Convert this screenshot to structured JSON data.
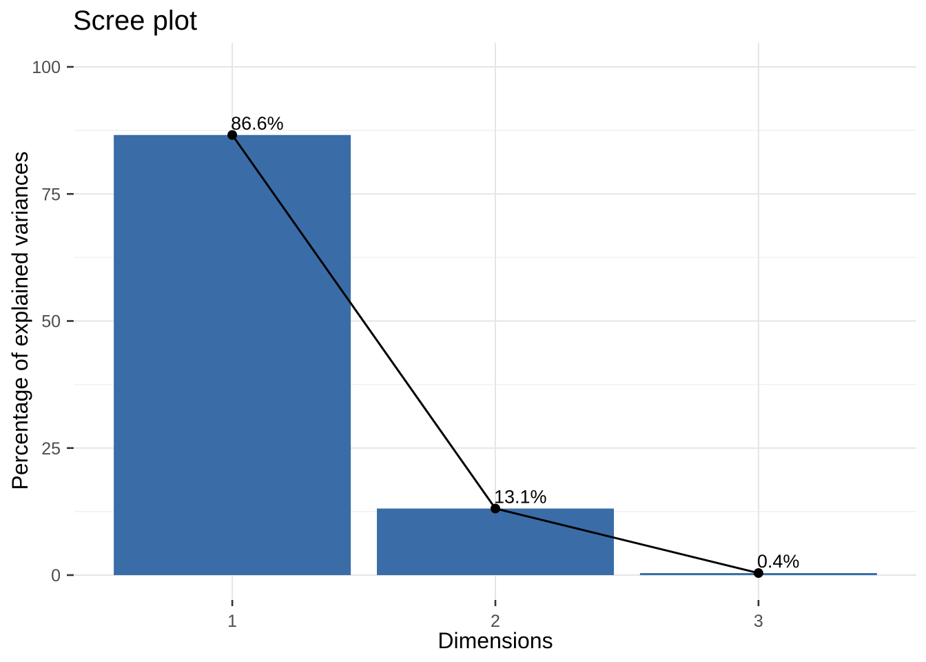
{
  "chart_data": {
    "type": "bar",
    "overlay": "line",
    "title": "Scree plot",
    "xlabel": "Dimensions",
    "ylabel": "Percentage of explained variances",
    "categories": [
      "1",
      "2",
      "3"
    ],
    "values": [
      86.6,
      13.1,
      0.4
    ],
    "point_labels": [
      "86.6%",
      "13.1%",
      "0.4%"
    ],
    "y_ticks": [
      0,
      25,
      50,
      75,
      100
    ],
    "ylim": [
      0,
      100
    ],
    "grid": "horizontal major+minor, vertical major",
    "legend_position": "none",
    "colors": {
      "bar_fill": "#3A6DA7",
      "line": "#000000",
      "point": "#000000",
      "title_text": "#000000",
      "axis_title_text": "#000000",
      "tick_label_text": "#4D4D4D",
      "tick_mark": "#333333",
      "grid_major": "#E5E5E5",
      "grid_minor": "#F1F1F1",
      "background": "#FFFFFF"
    }
  }
}
